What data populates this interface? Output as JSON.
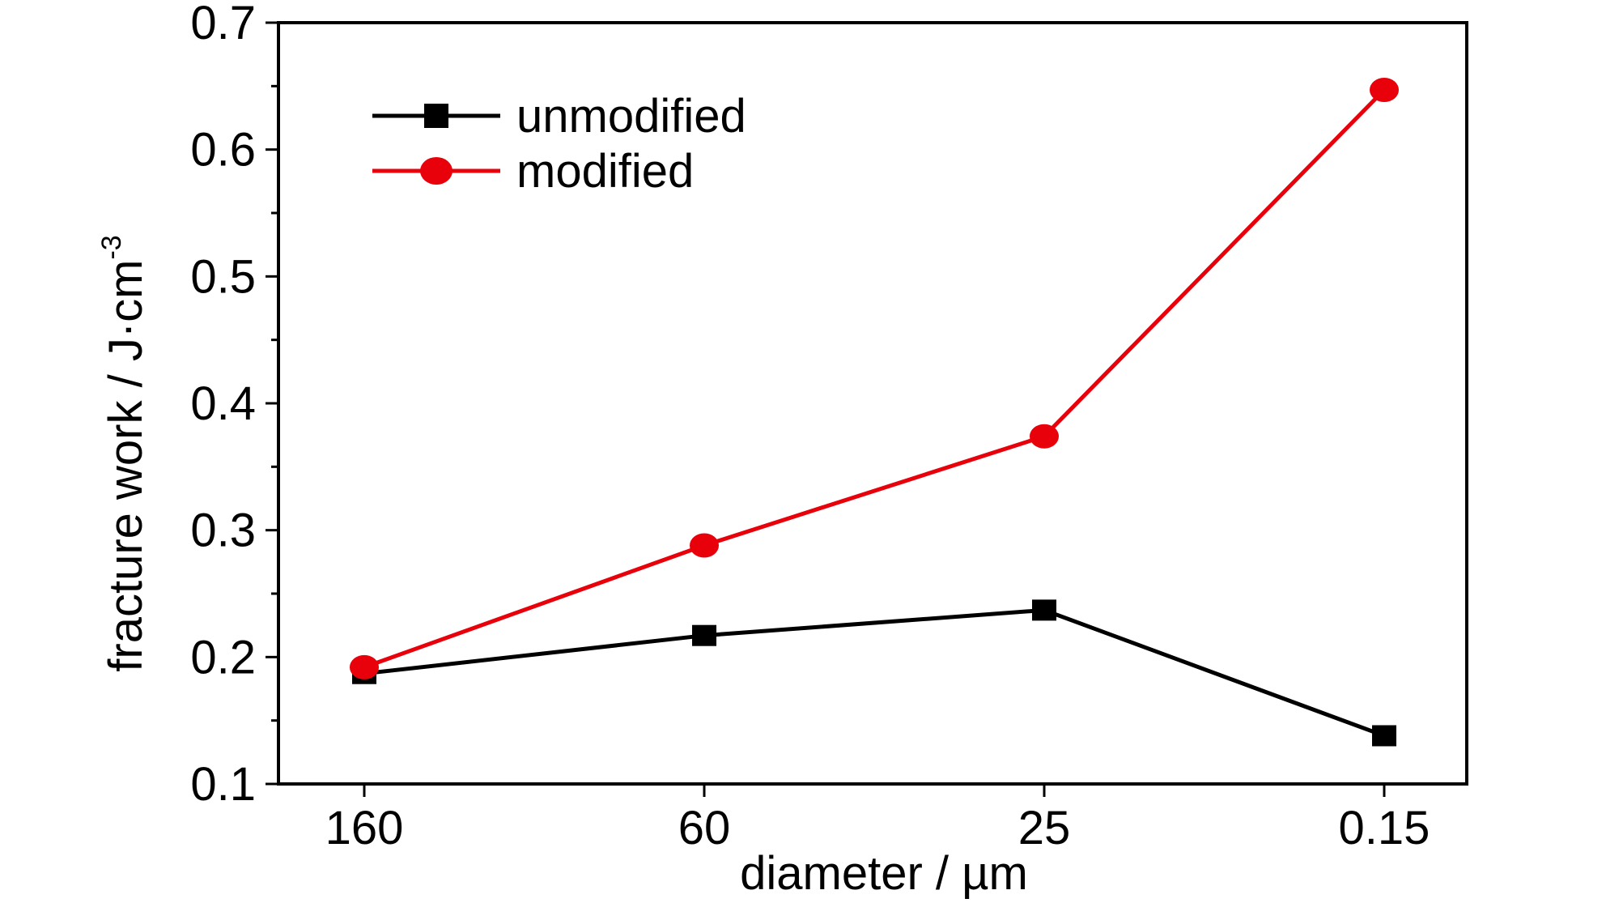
{
  "chart_data": {
    "type": "line",
    "categories": [
      "160",
      "60",
      "25",
      "0.15"
    ],
    "series": [
      {
        "name": "unmodified",
        "values": [
          0.187,
          0.217,
          0.237,
          0.138
        ],
        "color": "#000000",
        "marker": "square"
      },
      {
        "name": "modified",
        "values": [
          0.192,
          0.288,
          0.374,
          0.647
        ],
        "color": "#e8000b",
        "marker": "circle"
      }
    ],
    "xlabel": "diameter / µm",
    "ylabel": "fracture work / J·cm",
    "ylabel_superscript": "-3",
    "ylim": [
      0.1,
      0.7
    ],
    "yticks": [
      "0.1",
      "0.2",
      "0.3",
      "0.4",
      "0.5",
      "0.6",
      "0.7"
    ],
    "grid": false,
    "legend_position": "top-left"
  }
}
